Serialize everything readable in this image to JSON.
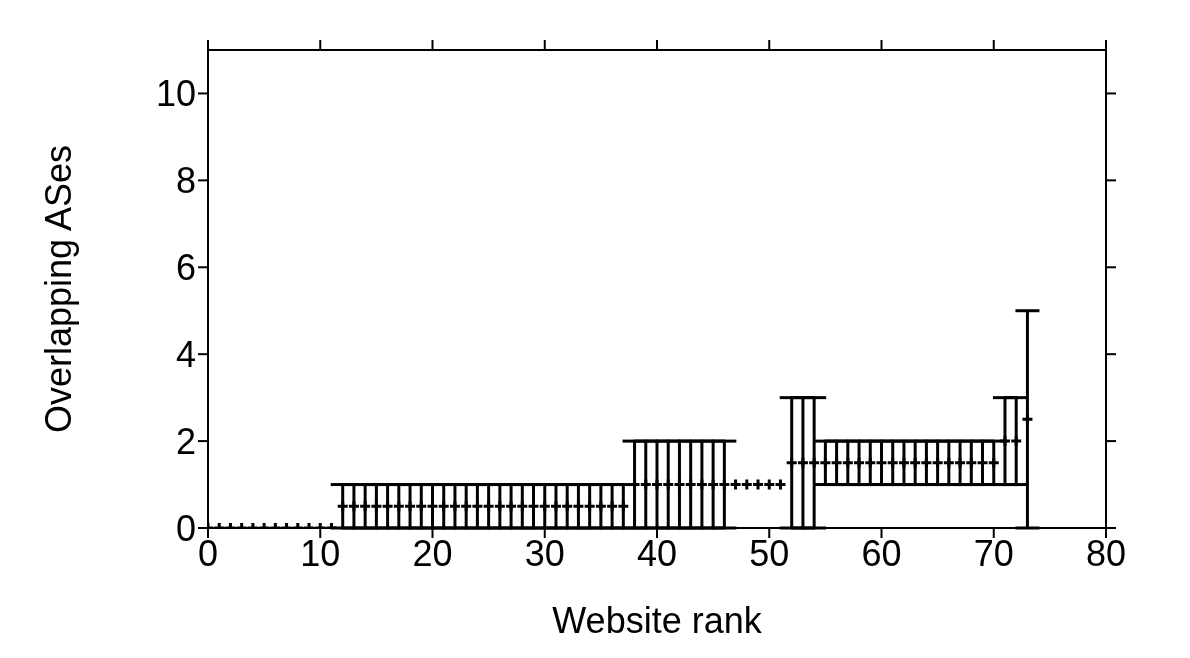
{
  "chart_data": {
    "type": "scatter",
    "xlabel": "Website rank",
    "ylabel": "Overlapping ASes",
    "x": [
      0,
      1,
      2,
      3,
      4,
      5,
      6,
      7,
      8,
      9,
      10,
      11,
      12,
      13,
      14,
      15,
      16,
      17,
      18,
      19,
      20,
      21,
      22,
      23,
      24,
      25,
      26,
      27,
      28,
      29,
      30,
      31,
      32,
      33,
      34,
      35,
      36,
      37,
      38,
      39,
      40,
      41,
      42,
      43,
      44,
      45,
      46,
      47,
      48,
      49,
      50,
      51,
      52,
      53,
      54,
      55,
      56,
      57,
      58,
      59,
      60,
      61,
      62,
      63,
      64,
      65,
      66,
      67,
      68,
      69,
      70,
      71,
      72,
      73
    ],
    "values": [
      0,
      0,
      0,
      0,
      0,
      0,
      0,
      0,
      0,
      0,
      0,
      0,
      0.5,
      0.5,
      0.5,
      0.5,
      0.5,
      0.5,
      0.5,
      0.5,
      0.5,
      0.5,
      0.5,
      0.5,
      0.5,
      0.5,
      0.5,
      0.5,
      0.5,
      0.5,
      0.5,
      0.5,
      0.5,
      0.5,
      0.5,
      0.5,
      0.5,
      0.5,
      1,
      1,
      1,
      1,
      1,
      1,
      1,
      1,
      1,
      1,
      1,
      1,
      1,
      1,
      1.5,
      1.5,
      1.5,
      1.5,
      1.5,
      1.5,
      1.5,
      1.5,
      1.5,
      1.5,
      1.5,
      1.5,
      1.5,
      1.5,
      1.5,
      1.5,
      1.5,
      1.5,
      1.5,
      2,
      2,
      2.5
    ],
    "errors": [
      null,
      null,
      null,
      null,
      null,
      null,
      null,
      null,
      null,
      null,
      null,
      null,
      0.5,
      0.5,
      0.5,
      0.5,
      0.5,
      0.5,
      0.5,
      0.5,
      0.5,
      0.5,
      0.5,
      0.5,
      0.5,
      0.5,
      0.5,
      0.5,
      0.5,
      0.5,
      0.5,
      0.5,
      0.5,
      0.5,
      0.5,
      0.5,
      0.5,
      0.5,
      1,
      1,
      1,
      1,
      1,
      1,
      1,
      1,
      1,
      null,
      null,
      null,
      null,
      null,
      1.5,
      1.5,
      1.5,
      0.5,
      0.5,
      0.5,
      0.5,
      0.5,
      0.5,
      0.5,
      0.5,
      0.5,
      0.5,
      0.5,
      0.5,
      0.5,
      0.5,
      0.5,
      0.5,
      1,
      1,
      2.5
    ],
    "color": "#000000",
    "marker": "cross",
    "xlim": [
      0,
      80
    ],
    "xticks": [
      0,
      10,
      20,
      30,
      40,
      50,
      60,
      70,
      80
    ],
    "ylim": [
      0,
      11
    ],
    "yticks": [
      0,
      2,
      4,
      6,
      8,
      10
    ]
  }
}
